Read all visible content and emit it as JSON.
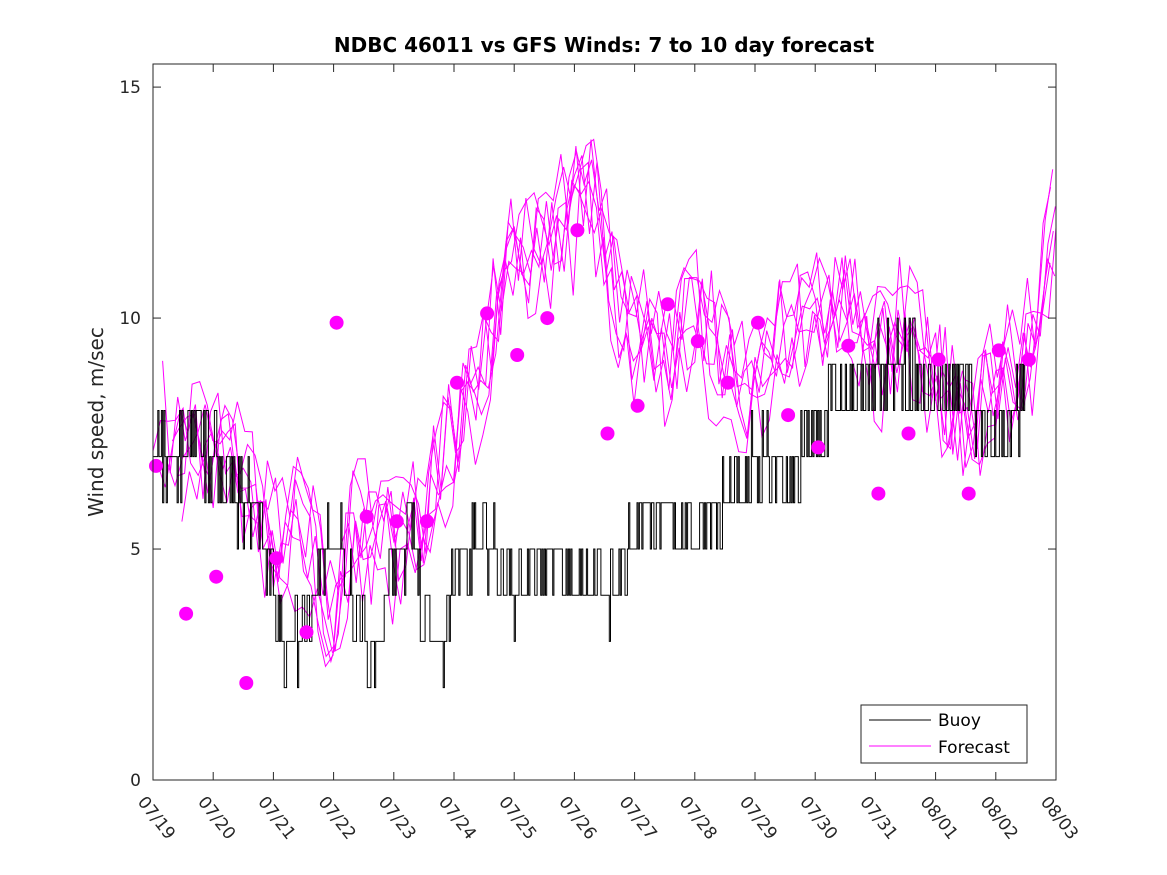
{
  "chart_data": {
    "type": "line",
    "title": "NDBC 46011 vs GFS Winds: 7 to 10 day forecast",
    "xlabel": "",
    "ylabel": "Wind speed, m/sec",
    "xlim": [
      0,
      15
    ],
    "ylim": [
      0,
      15.5
    ],
    "x_tick_labels": [
      "07/19",
      "07/20",
      "07/21",
      "07/22",
      "07/23",
      "07/24",
      "07/25",
      "07/26",
      "07/27",
      "07/28",
      "07/29",
      "07/30",
      "07/31",
      "08/01",
      "08/02",
      "08/03"
    ],
    "y_ticks": [
      0,
      5,
      10,
      15
    ],
    "grid": false,
    "legend": {
      "position": "bottom-right",
      "entries": [
        "Buoy",
        "Forecast"
      ]
    },
    "colors": {
      "buoy": "#000000",
      "forecast": "#ff00ff"
    },
    "buoy_anchor": {
      "x": [
        0,
        0.3,
        0.6,
        1.0,
        1.3,
        1.5,
        1.8,
        2.0,
        2.2,
        2.5,
        2.8,
        3.0,
        3.3,
        3.6,
        4.0,
        4.3,
        4.5,
        4.8,
        5.0,
        5.5,
        6.0,
        6.5,
        7.0,
        7.3,
        7.6,
        8.0,
        8.5,
        9.0,
        9.5,
        10.0,
        10.5,
        11.0,
        11.5,
        12.0,
        12.5,
        13.0,
        13.5,
        14.0,
        14.3,
        14.5
      ],
      "y": [
        7.5,
        7,
        7.2,
        7,
        6.5,
        6,
        5.5,
        4,
        2.8,
        3,
        4.5,
        5.5,
        4,
        2.5,
        4.5,
        5.5,
        3.5,
        2.5,
        4.5,
        5.2,
        4,
        4.8,
        4.5,
        4.5,
        4,
        5.5,
        6,
        5.2,
        6,
        7,
        6.5,
        7.5,
        8.5,
        9,
        9,
        8.5,
        8.5,
        7,
        8,
        8.5
      ]
    },
    "forecast_daily_means": {
      "x": [
        0.05,
        0.55,
        1.05,
        1.55,
        2.05,
        2.55,
        3.05,
        3.55,
        4.05,
        4.55,
        5.05,
        5.55,
        6.05,
        6.55,
        7.05,
        7.55,
        8.05,
        8.55,
        9.05,
        9.55,
        10.05,
        10.55,
        11.05,
        11.55,
        12.05,
        12.55,
        13.05,
        13.55,
        14.05,
        14.55
      ],
      "y": [
        6.8,
        3.6,
        4.4,
        2.1,
        4.8,
        3.2,
        9.9,
        5.7,
        5.6,
        5.6,
        8.6,
        10.1,
        9.2,
        10,
        11.9,
        7.5,
        8.1,
        10.3,
        9.5,
        8.6,
        9.9,
        7.9,
        7.2,
        9.4,
        6.2,
        7.5,
        9.1,
        6.2,
        9.3,
        9.1
      ]
    },
    "forecast_anchor": {
      "x": [
        0,
        0.5,
        1.0,
        1.5,
        2.0,
        2.5,
        3.0,
        3.3,
        3.6,
        4.0,
        4.5,
        5.0,
        5.5,
        6.0,
        6.5,
        7.0,
        7.3,
        7.6,
        8.0,
        8.5,
        9.0,
        9.5,
        10.0,
        10.5,
        11.0,
        11.5,
        12.0,
        12.5,
        13.0,
        13.5,
        14.0,
        14.5,
        15.0
      ],
      "y": [
        7.5,
        7.2,
        7,
        6.5,
        5,
        5.5,
        3,
        5.5,
        5.2,
        5,
        5.5,
        7.5,
        9,
        11.5,
        11.8,
        12.2,
        12.8,
        11,
        9.5,
        9,
        10,
        9,
        8.5,
        9.5,
        10,
        10.5,
        9,
        10,
        8.5,
        7.5,
        8.5,
        9,
        12
      ]
    }
  }
}
